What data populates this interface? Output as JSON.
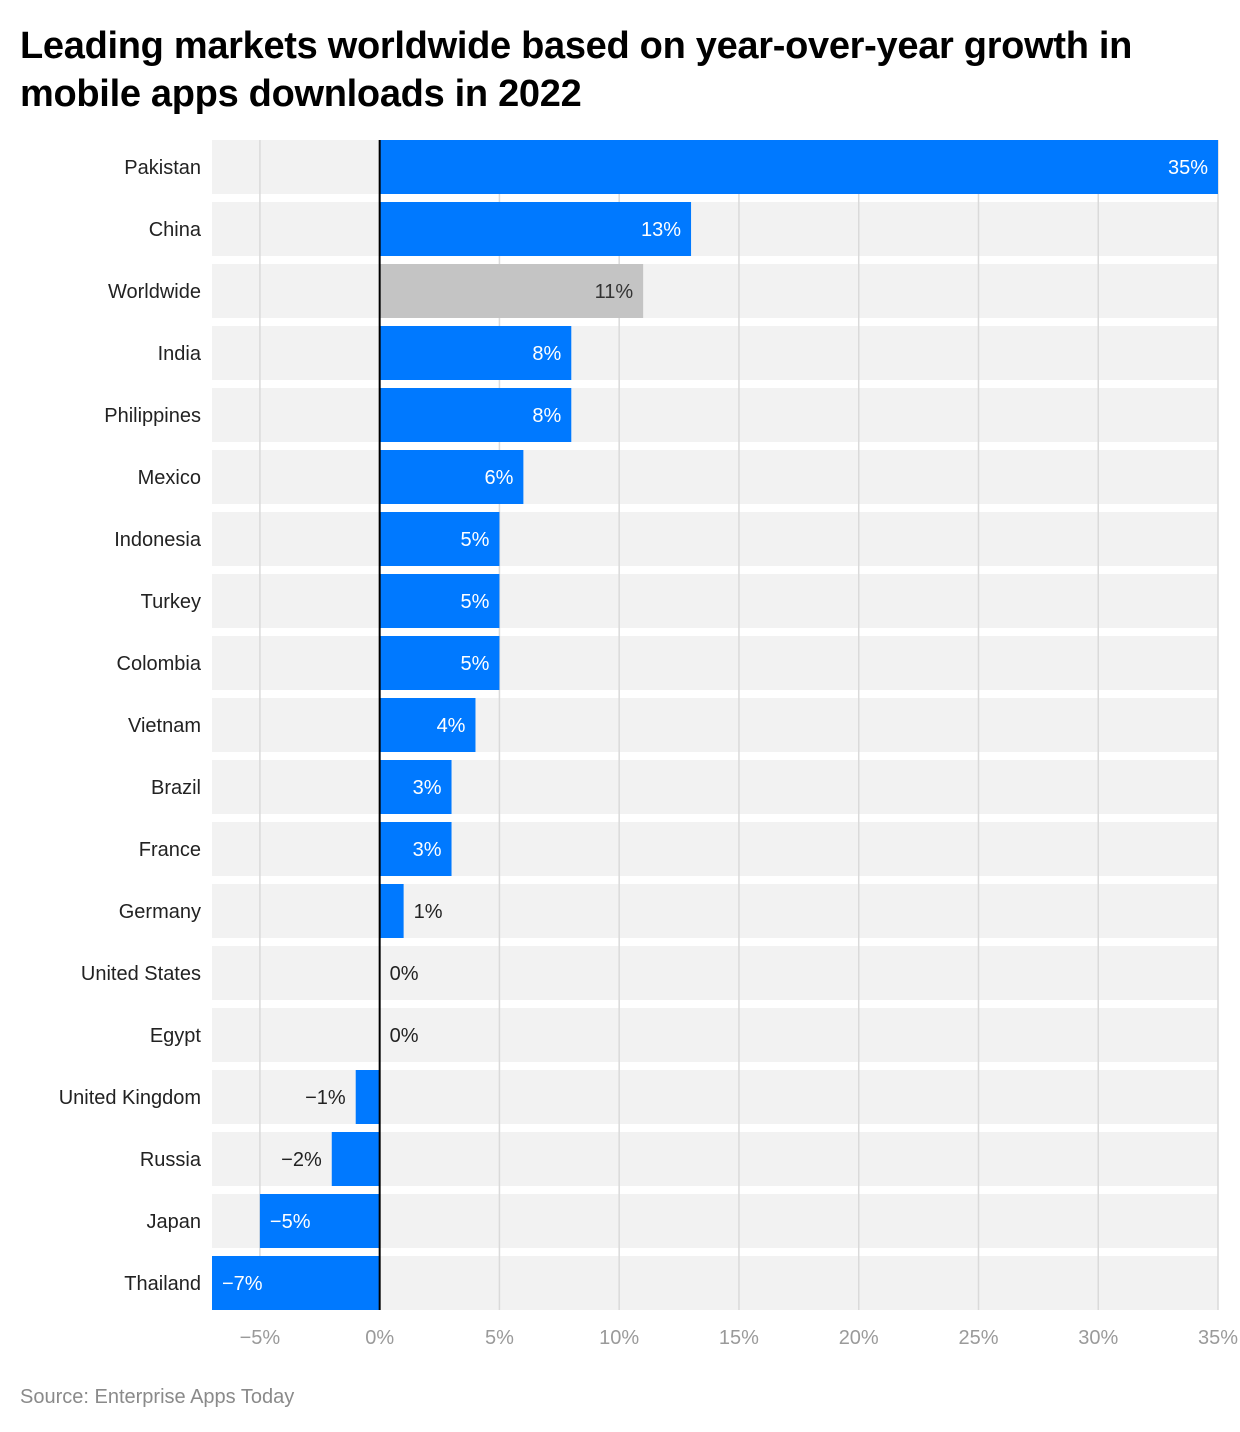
{
  "chart_data": {
    "type": "bar",
    "orientation": "horizontal",
    "title": "Leading markets worldwide based on year-over-year growth in mobile apps downloads in 2022",
    "categories": [
      "Pakistan",
      "China",
      "Worldwide",
      "India",
      "Philippines",
      "Mexico",
      "Indonesia",
      "Turkey",
      "Colombia",
      "Vietnam",
      "Brazil",
      "France",
      "Germany",
      "United States",
      "Egypt",
      "United Kingdom",
      "Russia",
      "Japan",
      "Thailand"
    ],
    "values": [
      35,
      13,
      11,
      8,
      8,
      6,
      5,
      5,
      5,
      4,
      3,
      3,
      1,
      0,
      0,
      -1,
      -2,
      -5,
      -7
    ],
    "data_labels": [
      "35%",
      "13%",
      "11%",
      "8%",
      "8%",
      "6%",
      "5%",
      "5%",
      "5%",
      "4%",
      "3%",
      "3%",
      "1%",
      "0%",
      "0%",
      "−1%",
      "−2%",
      "−5%",
      "−7%"
    ],
    "highlight_category": "Worldwide",
    "colors": {
      "bar": "#0079FF",
      "highlight": "#C4C4C4",
      "row_background": "#F2F2F2",
      "grid": "#DADADA",
      "zero_line": "#000000"
    },
    "xlim": [
      -7,
      35
    ],
    "xticks": [
      -5,
      0,
      5,
      10,
      15,
      20,
      25,
      30,
      35
    ],
    "xtick_labels": [
      "−5%",
      "0%",
      "5%",
      "10%",
      "15%",
      "20%",
      "25%",
      "30%",
      "35%"
    ],
    "xlabel": "",
    "ylabel": "",
    "grid": true,
    "legend": "none"
  },
  "source": "Source: Enterprise Apps Today"
}
